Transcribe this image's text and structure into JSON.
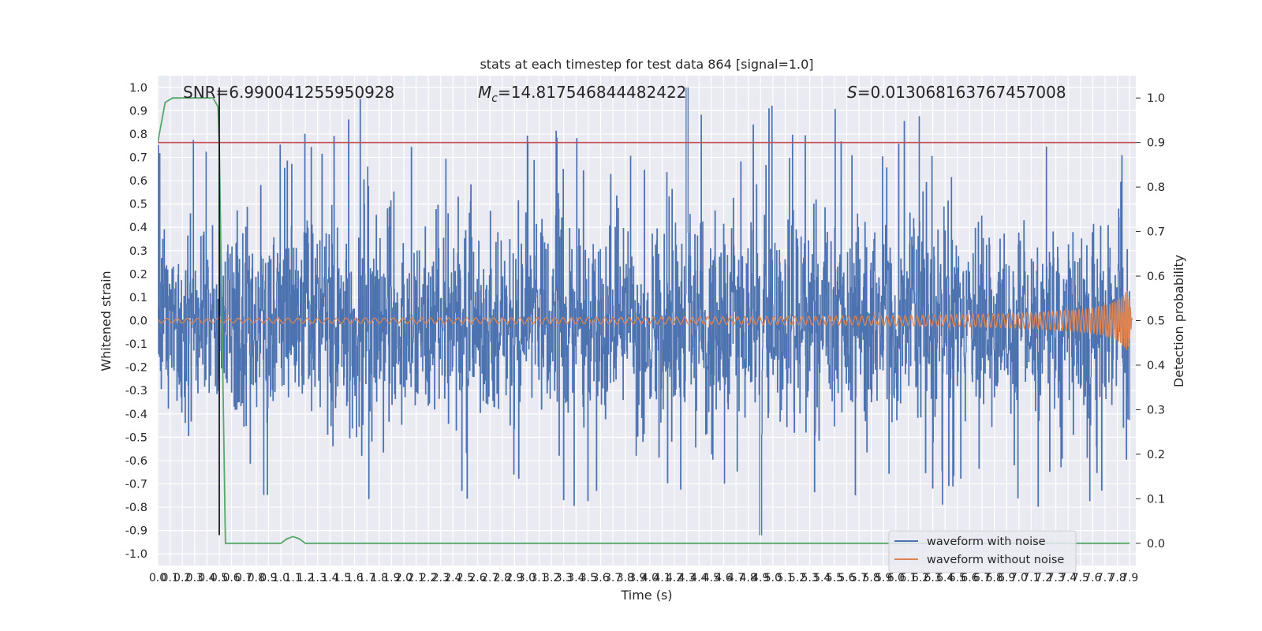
{
  "chart_data": {
    "type": "line",
    "title": "stats at each timestep for test data 864 [signal=1.0]",
    "xlabel": "Time (s)",
    "ylabel_left": "Whitened strain",
    "ylabel_right": "Detection probability",
    "xlim": [
      0.0,
      7.95
    ],
    "ylim_left": [
      -1.05,
      1.05
    ],
    "ylim_right": [
      -0.05,
      1.05
    ],
    "x_ticks": [
      "0.0",
      "0.1",
      "0.2",
      "0.3",
      "0.4",
      "0.5",
      "0.6",
      "0.7",
      "0.8",
      "0.9",
      "1.0",
      "1.1",
      "1.2",
      "1.3",
      "1.4",
      "1.5",
      "1.6",
      "1.7",
      "1.8",
      "1.9",
      "2.0",
      "2.1",
      "2.2",
      "2.3",
      "2.4",
      "2.5",
      "2.6",
      "2.7",
      "2.8",
      "2.9",
      "3.0",
      "3.1",
      "3.2",
      "3.3",
      "3.4",
      "3.5",
      "3.6",
      "3.7",
      "3.8",
      "3.9",
      "4.0",
      "4.1",
      "4.2",
      "4.3",
      "4.4",
      "4.5",
      "4.6",
      "4.7",
      "4.8",
      "4.9",
      "5.0",
      "5.1",
      "5.2",
      "5.3",
      "5.4",
      "5.5",
      "5.6",
      "5.7",
      "5.8",
      "5.9",
      "6.0",
      "6.1",
      "6.2",
      "6.3",
      "6.4",
      "6.5",
      "6.6",
      "6.7",
      "6.8",
      "6.9",
      "7.0",
      "7.1",
      "7.2",
      "7.3",
      "7.4",
      "7.5",
      "7.6",
      "7.7",
      "7.8",
      "7.9"
    ],
    "y_ticks_left": [
      "-1.0",
      "-0.9",
      "-0.8",
      "-0.7",
      "-0.6",
      "-0.5",
      "-0.4",
      "-0.3",
      "-0.2",
      "-0.1",
      "0.0",
      "0.1",
      "0.2",
      "0.3",
      "0.4",
      "0.5",
      "0.6",
      "0.7",
      "0.8",
      "0.9",
      "1.0"
    ],
    "y_ticks_right": [
      "0.0",
      "0.1",
      "0.2",
      "0.3",
      "0.4",
      "0.5",
      "0.6",
      "0.7",
      "0.8",
      "0.9",
      "1.0"
    ],
    "annotations": {
      "snr": "SNR=6.990041255950928",
      "mc_symbol": "M",
      "mc_sub": "c",
      "mc_value": "=14.817546844482422",
      "s_symbol": "S",
      "s_value": "=0.013068163767457008"
    },
    "legend": {
      "placement": "lower right",
      "entries": [
        "waveform with noise",
        "waveform without noise"
      ]
    },
    "series": [
      {
        "name": "waveform with noise",
        "axis": "left",
        "color": "#4c72b0",
        "style": "dense noise, typical range about -0.5 to 0.5, extreme peaks near 1.0 and -0.92"
      },
      {
        "name": "waveform without noise",
        "axis": "left",
        "color": "#dd8452",
        "style": "chirp oscillation, amplitude about 0.01 rising to about 0.28 at 7.85 s"
      },
      {
        "axis": "right",
        "color": "#55a868",
        "x": [
          0.0,
          0.06,
          0.12,
          0.2,
          0.3,
          0.4,
          0.45,
          0.49,
          0.5,
          0.55,
          0.6,
          0.7,
          0.8,
          0.9,
          1.0,
          1.05,
          1.1,
          1.15,
          1.2,
          1.3,
          1.4,
          1.5,
          2.0,
          3.0,
          4.0,
          5.0,
          6.0,
          7.0,
          7.9
        ],
        "values": [
          0.9,
          0.99,
          1.0,
          1.0,
          1.0,
          1.0,
          1.0,
          0.98,
          0.9,
          0.0,
          0.0,
          0.0,
          0.0,
          0.0,
          0.0,
          0.01,
          0.015,
          0.01,
          0.0,
          0.0,
          0.0,
          0.0,
          0.0,
          0.0,
          0.0,
          0.0,
          0.0,
          0.0,
          0.0
        ]
      }
    ],
    "reference_lines": [
      {
        "orientation": "horizontal",
        "axis": "right",
        "value": 0.9,
        "color": "#c44e52"
      },
      {
        "orientation": "vertical",
        "x": 0.5,
        "y_range_left": [
          -0.92,
          1.0
        ],
        "color": "#000000"
      }
    ],
    "grid": true,
    "background": "#eaeaf2"
  }
}
